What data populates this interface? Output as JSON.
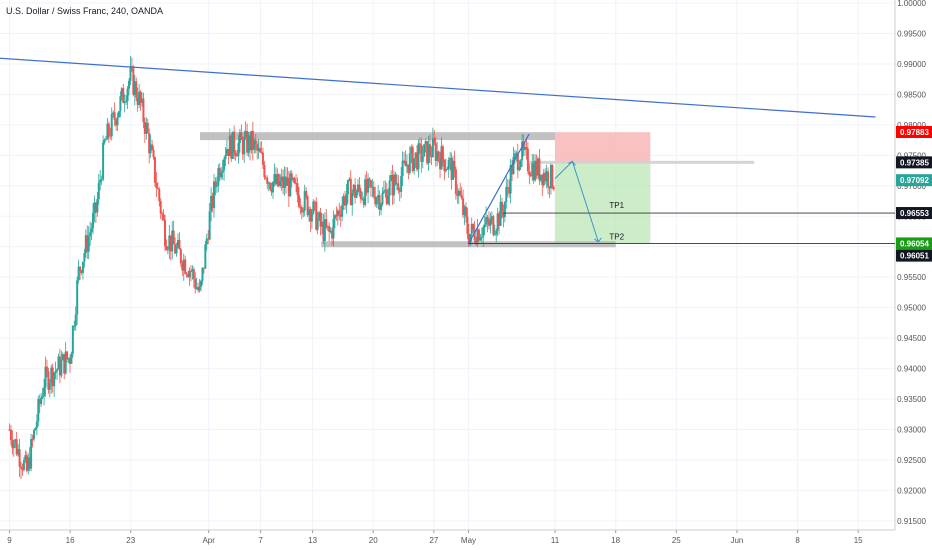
{
  "header": {
    "title": "U.S. Dollar / Swiss Franc, 240, OANDA"
  },
  "colors": {
    "up": "#26a69a",
    "down": "#ef5350",
    "trendline": "#3d6fd1",
    "zone": "#b2b2b2",
    "stop_zone": "#f7a8a8",
    "target_zone": "#b7e6b0",
    "price_badge_red": "#ff0000",
    "price_badge_dark": "#131722",
    "price_badge_teal": "#26a69a",
    "price_badge_green": "#1b9c19",
    "axis_text": "#555555",
    "grid": "#f0f3fa"
  },
  "chart_data": {
    "type": "candlestick",
    "title": "U.S. Dollar / Swiss Franc, 240, OANDA",
    "ylim": [
      0.9135,
      1.0005
    ],
    "x_ticks": [
      "9",
      "16",
      "23",
      "Apr",
      "7",
      "13",
      "20",
      "27",
      "May",
      "11",
      "18",
      "25",
      "Jun",
      "8",
      "15"
    ],
    "y_ticks": [
      "1.00000",
      "0.99500",
      "0.99000",
      "0.98500",
      "0.98000",
      "0.97500",
      "0.97000",
      "0.96500",
      "0.96000",
      "0.95500",
      "0.95000",
      "0.94500",
      "0.94000",
      "0.93500",
      "0.93000",
      "0.92500",
      "0.92000",
      "0.91500"
    ],
    "price_labels": [
      {
        "value": "0.97883",
        "color": "price_badge_red"
      },
      {
        "value": "0.97385",
        "color": "price_badge_dark"
      },
      {
        "value": "0.97092",
        "color": "price_badge_teal"
      },
      {
        "value": "0.96553",
        "color": "price_badge_dark"
      },
      {
        "value": "0.96054",
        "color": "price_badge_green"
      },
      {
        "value": "0.96051",
        "color": "price_badge_dark"
      }
    ],
    "annotations": [
      "TP1",
      "TP2"
    ],
    "price_path": [
      {
        "x": "Mar 9",
        "y": 0.93
      },
      {
        "x": "Mar 11",
        "y": 0.923
      },
      {
        "x": "Mar 13",
        "y": 0.938
      },
      {
        "x": "Mar 16",
        "y": 0.942
      },
      {
        "x": "Mar 17",
        "y": 0.956
      },
      {
        "x": "Mar 19",
        "y": 0.966
      },
      {
        "x": "Mar 20",
        "y": 0.977
      },
      {
        "x": "Mar 23",
        "y": 0.988
      },
      {
        "x": "Mar 24",
        "y": 0.984
      },
      {
        "x": "Mar 25",
        "y": 0.978
      },
      {
        "x": "Mar 26",
        "y": 0.97
      },
      {
        "x": "Mar 27",
        "y": 0.962
      },
      {
        "x": "Mar 30",
        "y": 0.956
      },
      {
        "x": "Mar 31",
        "y": 0.952
      },
      {
        "x": "Apr 1",
        "y": 0.964
      },
      {
        "x": "Apr 2",
        "y": 0.972
      },
      {
        "x": "Apr 3",
        "y": 0.9765
      },
      {
        "x": "Apr 6",
        "y": 0.977
      },
      {
        "x": "Apr 7",
        "y": 0.9745
      },
      {
        "x": "Apr 8",
        "y": 0.971
      },
      {
        "x": "Apr 9",
        "y": 0.97
      },
      {
        "x": "Apr 10",
        "y": 0.9705
      },
      {
        "x": "Apr 13",
        "y": 0.966
      },
      {
        "x": "Apr 14",
        "y": 0.963
      },
      {
        "x": "Apr 15",
        "y": 0.962
      },
      {
        "x": "Apr 16",
        "y": 0.966
      },
      {
        "x": "Apr 17",
        "y": 0.969
      },
      {
        "x": "Apr 20",
        "y": 0.969
      },
      {
        "x": "Apr 21",
        "y": 0.968
      },
      {
        "x": "Apr 22",
        "y": 0.97
      },
      {
        "x": "Apr 23",
        "y": 0.971
      },
      {
        "x": "Apr 24",
        "y": 0.974
      },
      {
        "x": "Apr 27",
        "y": 0.976
      },
      {
        "x": "Apr 28",
        "y": 0.9745
      },
      {
        "x": "Apr 29",
        "y": 0.973
      },
      {
        "x": "Apr 30",
        "y": 0.968
      },
      {
        "x": "May 1",
        "y": 0.962
      },
      {
        "x": "May 4",
        "y": 0.964
      },
      {
        "x": "May 5",
        "y": 0.966
      },
      {
        "x": "May 6",
        "y": 0.973
      },
      {
        "x": "May 7",
        "y": 0.9755
      },
      {
        "x": "May 8",
        "y": 0.9735
      },
      {
        "x": "May 11",
        "y": 0.9709
      }
    ],
    "trendlines": [
      {
        "name": "",
        "from": {
          "x": "Mar 2",
          "y": 0.9915
        },
        "to": {
          "x": "Jun 17",
          "y": 0.9813
        }
      },
      {
        "name": "",
        "from": {
          "x": "May 1",
          "y": 0.9605
        },
        "to": {
          "x": "May 8",
          "y": 0.9785
        }
      }
    ],
    "zones": [
      {
        "from": "Mar 31",
        "to": "May 11",
        "y_top": 0.9788,
        "y_bottom": 0.9775
      },
      {
        "from": "Apr 14",
        "to": "May 18",
        "y_top": 0.9609,
        "y_bottom": 0.9601
      }
    ],
    "levels": [
      0.97385,
      0.96553,
      0.96054
    ]
  }
}
